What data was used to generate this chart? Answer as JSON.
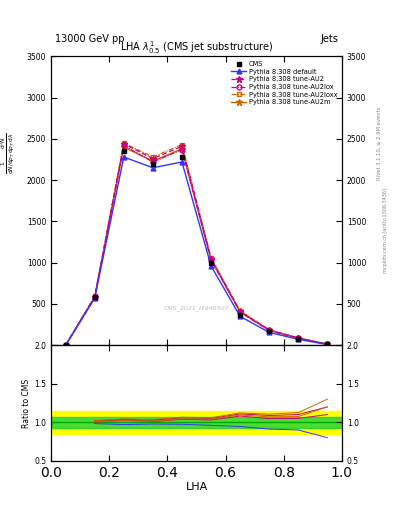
{
  "title": "LHA $\\lambda^{1}_{0.5}$ (CMS jet substructure)",
  "header_left": "13000 GeV pp",
  "header_right": "Jets",
  "right_label1": "Rivet 3.1.10, ≥ 2.9M events",
  "right_label2": "mcplots.cern.ch [arXiv:1306.3436]",
  "watermark": "CMS_2021_I1946507",
  "xlabel": "LHA",
  "ylabel_top": "$\\frac{1}{\\mathrm{d}N/\\mathrm{d}p_T}\\frac{\\mathrm{d}^2N}{\\mathrm{d}p_T\\,\\mathrm{d}\\lambda}$",
  "ratio_ylabel": "Ratio to CMS",
  "xlim": [
    0.0,
    1.0
  ],
  "ylim_main": [
    0,
    3500
  ],
  "ylim_ratio": [
    0.5,
    2.0
  ],
  "yticks_main": [
    0,
    500,
    1000,
    1500,
    2000,
    2500,
    3000,
    3500
  ],
  "yticks_ratio": [
    0.5,
    1.0,
    1.5,
    2.0
  ],
  "xticks": [
    0.0,
    0.2,
    0.4,
    0.6,
    0.8,
    1.0
  ],
  "x_data": [
    0.05,
    0.15,
    0.25,
    0.35,
    0.45,
    0.55,
    0.65,
    0.75,
    0.85,
    0.95
  ],
  "cms_data": [
    0,
    580,
    2350,
    2200,
    2280,
    1000,
    370,
    170,
    80,
    10
  ],
  "py_default": [
    0,
    570,
    2280,
    2150,
    2220,
    960,
    350,
    155,
    72,
    8
  ],
  "py_au2": [
    0,
    590,
    2440,
    2260,
    2410,
    1050,
    410,
    185,
    88,
    12
  ],
  "py_au2lox": [
    0,
    580,
    2420,
    2220,
    2370,
    1030,
    400,
    178,
    84,
    11
  ],
  "py_au2loxx": [
    0,
    592,
    2450,
    2280,
    2430,
    1060,
    415,
    188,
    90,
    13
  ],
  "py_au2m": [
    0,
    582,
    2400,
    2230,
    2380,
    1040,
    405,
    182,
    86,
    12
  ],
  "color_default": "#3333ff",
  "color_au2": "#cc0077",
  "color_au2lox": "#cc0077",
  "color_au2loxx": "#cc6600",
  "color_au2m": "#cc6600",
  "color_cms": "#000000",
  "ratio_green_low": 0.93,
  "ratio_green_high": 1.07,
  "ratio_yellow_low": 0.85,
  "ratio_yellow_high": 1.15,
  "bg_color": "#ffffff"
}
